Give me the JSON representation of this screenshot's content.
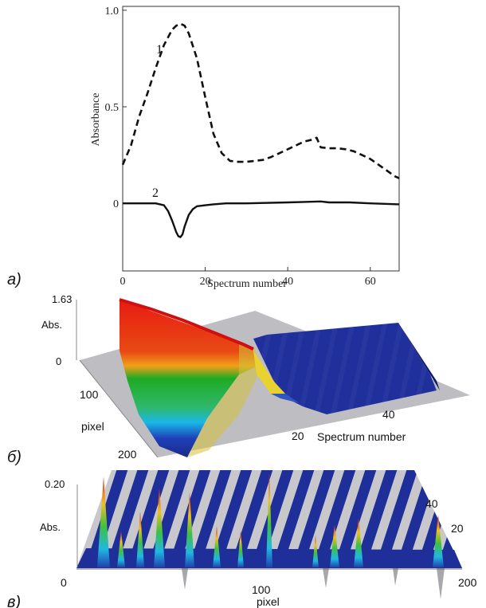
{
  "chart_data": [
    {
      "panel_label": "a)",
      "type": "line",
      "xlabel": "Spectrum number",
      "ylabel": "Absorbance",
      "xlim": [
        0,
        67
      ],
      "ylim": [
        -0.35,
        1.02
      ],
      "xticks": [
        "0",
        "20",
        "40",
        "60"
      ],
      "xtick_values": [
        0,
        20,
        40,
        60
      ],
      "yticks": [
        "0",
        "0.5",
        "1.0"
      ],
      "ytick_values": [
        0,
        0.5,
        1.0
      ],
      "series": [
        {
          "name": "1",
          "style": "dashed",
          "x": [
            0,
            2,
            4,
            6,
            8,
            10,
            12,
            13,
            14,
            15,
            16,
            18,
            20,
            22,
            24,
            26,
            28,
            30,
            32,
            34,
            36,
            38,
            40,
            42,
            44,
            46,
            47,
            48,
            50,
            52,
            54,
            56,
            58,
            60,
            62,
            64,
            66,
            67
          ],
          "y": [
            0.2,
            0.3,
            0.45,
            0.57,
            0.7,
            0.82,
            0.9,
            0.92,
            0.93,
            0.92,
            0.88,
            0.75,
            0.55,
            0.36,
            0.26,
            0.22,
            0.215,
            0.215,
            0.22,
            0.225,
            0.24,
            0.26,
            0.28,
            0.3,
            0.32,
            0.33,
            0.34,
            0.29,
            0.285,
            0.285,
            0.28,
            0.27,
            0.25,
            0.23,
            0.2,
            0.17,
            0.14,
            0.13
          ]
        },
        {
          "name": "2",
          "style": "solid",
          "x": [
            0,
            4,
            6,
            8,
            10,
            11,
            12,
            13,
            13.5,
            14,
            14.5,
            15,
            16,
            17,
            18,
            20,
            22,
            25,
            30,
            40,
            48,
            50,
            55,
            60,
            67
          ],
          "y": [
            0,
            0,
            0,
            0,
            -0.01,
            -0.04,
            -0.09,
            -0.15,
            -0.17,
            -0.175,
            -0.16,
            -0.12,
            -0.06,
            -0.03,
            -0.015,
            -0.01,
            -0.005,
            0,
            0,
            0.005,
            0.01,
            0.005,
            0.005,
            0,
            -0.005
          ]
        }
      ]
    },
    {
      "panel_label": "б)",
      "type": "surface",
      "zlabel": "Abs.",
      "zticks": [
        "1.63",
        "0"
      ],
      "xlabel": "pixel",
      "xticks": [
        "100",
        "200"
      ],
      "ylabel": "Spectrum number",
      "yticks": [
        "20",
        "40"
      ]
    },
    {
      "panel_label": "в)",
      "type": "surface",
      "zlabel": "Abs.",
      "zticks": [
        "0.20"
      ],
      "xlabel": "pixel",
      "xticks": [
        "0",
        "100",
        "200"
      ],
      "yticks": [
        "20",
        "40"
      ]
    }
  ]
}
